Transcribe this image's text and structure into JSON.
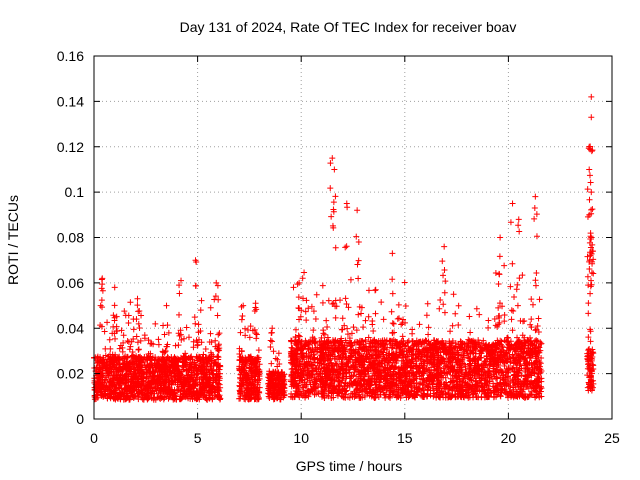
{
  "chart_data": {
    "type": "scatter",
    "title": "Day 131 of 2024, Rate Of TEC Index for receiver boav",
    "xlabel": "GPS time / hours",
    "ylabel": "ROTI / TECUs",
    "xlim": [
      0,
      25
    ],
    "ylim": [
      0,
      0.16
    ],
    "x_ticks": [
      0,
      5,
      10,
      15,
      20,
      25
    ],
    "x_tick_labels": [
      "0",
      "5",
      "10",
      "15",
      "20",
      "25"
    ],
    "y_ticks": [
      0,
      0.02,
      0.04,
      0.06,
      0.08,
      0.1,
      0.12,
      0.14,
      0.16
    ],
    "y_tick_labels": [
      "0",
      "0.02",
      "0.04",
      "0.06",
      "0.08",
      "0.1",
      "0.12",
      "0.14",
      "0.16"
    ],
    "grid": true,
    "marker": "+",
    "series": [
      {
        "name": "ROTI",
        "color": "#ff0000",
        "segments": [
          {
            "x_range": [
              0.0,
              6.1
            ],
            "base": 0.018,
            "spread": 0.012,
            "peak_outliers": [
              [
                0.4,
                0.062
              ],
              [
                1.0,
                0.058
              ],
              [
                2.1,
                0.053
              ],
              [
                3.5,
                0.05
              ],
              [
                4.2,
                0.061
              ],
              [
                4.9,
                0.07
              ],
              [
                5.9,
                0.06
              ]
            ]
          },
          {
            "x_range": [
              7.0,
              8.0
            ],
            "base": 0.018,
            "spread": 0.012,
            "peak_outliers": [
              [
                7.2,
                0.05
              ],
              [
                7.8,
                0.051
              ]
            ]
          },
          {
            "x_range": [
              8.4,
              9.2
            ],
            "base": 0.015,
            "spread": 0.008,
            "peak_outliers": [
              [
                8.6,
                0.04
              ]
            ]
          },
          {
            "x_range": [
              9.5,
              21.6
            ],
            "base": 0.022,
            "spread": 0.016,
            "peak_outliers": [
              [
                9.9,
                0.06
              ],
              [
                11.5,
                0.115
              ],
              [
                11.6,
                0.11
              ],
              [
                12.2,
                0.095
              ],
              [
                12.7,
                0.092
              ],
              [
                14.4,
                0.073
              ],
              [
                16.9,
                0.076
              ],
              [
                19.6,
                0.08
              ],
              [
                20.2,
                0.095
              ],
              [
                20.5,
                0.088
              ],
              [
                21.3,
                0.098
              ]
            ]
          },
          {
            "x_range": [
              23.8,
              24.1
            ],
            "base": 0.022,
            "spread": 0.012,
            "peak_outliers": [
              [
                24.0,
                0.142
              ],
              [
                24.0,
                0.133
              ],
              [
                23.9,
                0.12
              ],
              [
                23.9,
                0.11
              ],
              [
                24.0,
                0.1
              ],
              [
                23.9,
                0.09
              ],
              [
                24.0,
                0.08
              ]
            ]
          }
        ]
      }
    ]
  }
}
